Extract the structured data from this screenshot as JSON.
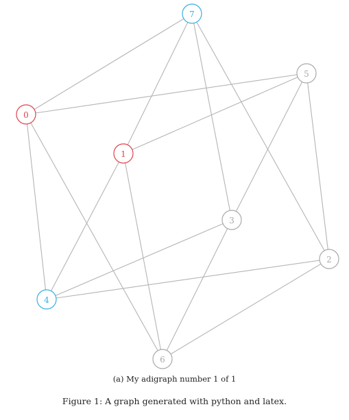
{
  "graph": {
    "nodes": [
      {
        "id": "7",
        "label": "7",
        "color": "#3aaee2"
      },
      {
        "id": "5",
        "label": "5",
        "color": "#a9a9a9"
      },
      {
        "id": "0",
        "label": "0",
        "color": "#e0404a"
      },
      {
        "id": "1",
        "label": "1",
        "color": "#e0404a"
      },
      {
        "id": "3",
        "label": "3",
        "color": "#a9a9a9"
      },
      {
        "id": "2",
        "label": "2",
        "color": "#a9a9a9"
      },
      {
        "id": "4",
        "label": "4",
        "color": "#3aaee2"
      },
      {
        "id": "6",
        "label": "6",
        "color": "#a9a9a9"
      }
    ],
    "edges": [
      [
        "7",
        "0"
      ],
      [
        "7",
        "1"
      ],
      [
        "7",
        "3"
      ],
      [
        "7",
        "2"
      ],
      [
        "5",
        "0"
      ],
      [
        "5",
        "1"
      ],
      [
        "5",
        "3"
      ],
      [
        "5",
        "2"
      ],
      [
        "0",
        "4"
      ],
      [
        "0",
        "6"
      ],
      [
        "1",
        "4"
      ],
      [
        "1",
        "6"
      ],
      [
        "3",
        "4"
      ],
      [
        "3",
        "6"
      ],
      [
        "2",
        "4"
      ],
      [
        "2",
        "6"
      ]
    ],
    "edge_color": "#b4b4b4"
  },
  "captions": {
    "subcaption": "(a) My adigraph number 1 of 1",
    "figure": "Figure 1: A graph generated with python and latex."
  }
}
